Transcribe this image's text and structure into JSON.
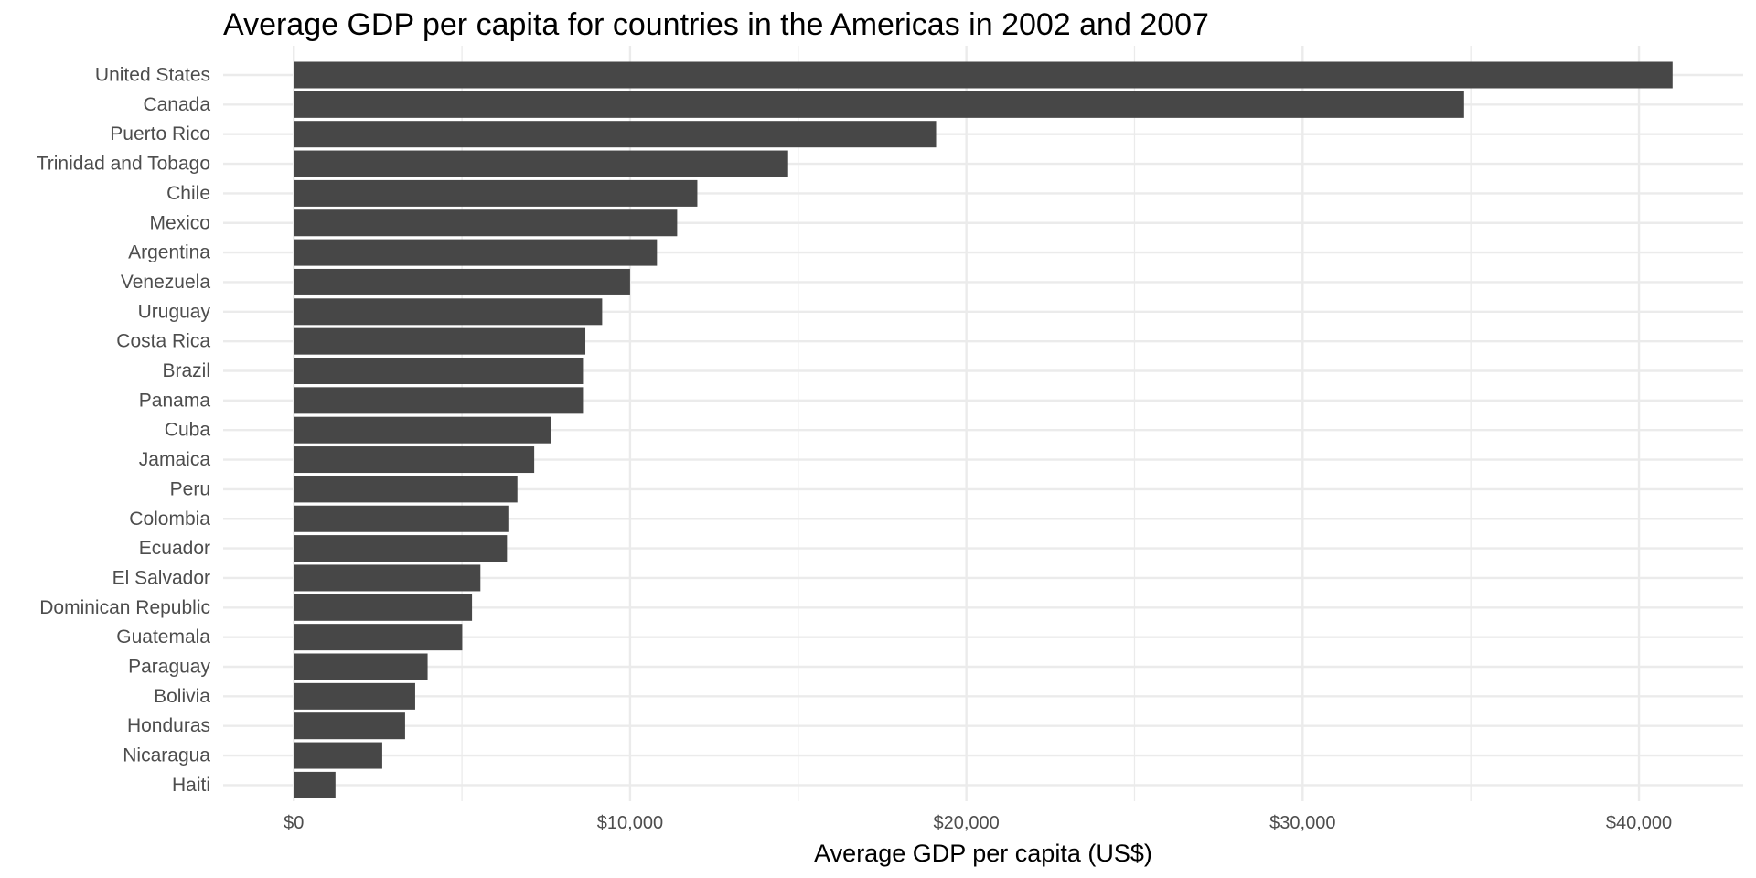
{
  "chart_data": {
    "type": "bar",
    "orientation": "horizontal",
    "title": "Average GDP per capita for countries in the Americas in 2002 and 2007",
    "xlabel": "Average GDP per capita (US$)",
    "ylabel": "",
    "xlim": [
      -2100,
      43100
    ],
    "x_ticks": [
      0,
      10000,
      20000,
      30000,
      40000
    ],
    "x_tick_labels": [
      "$0",
      "$10,000",
      "$20,000",
      "$30,000",
      "$40,000"
    ],
    "grid": true,
    "legend": "none",
    "categories": [
      "United States",
      "Canada",
      "Puerto Rico",
      "Trinidad and Tobago",
      "Chile",
      "Mexico",
      "Argentina",
      "Venezuela",
      "Uruguay",
      "Costa Rica",
      "Brazil",
      "Panama",
      "Cuba",
      "Jamaica",
      "Peru",
      "Colombia",
      "Ecuador",
      "El Salvador",
      "Dominican Republic",
      "Guatemala",
      "Paraguay",
      "Bolivia",
      "Honduras",
      "Nicaragua",
      "Haiti"
    ],
    "values": [
      41000,
      34800,
      19100,
      14700,
      12000,
      11400,
      10800,
      10000,
      9170,
      8670,
      8600,
      8600,
      7650,
      7150,
      6650,
      6380,
      6340,
      5550,
      5300,
      5010,
      3980,
      3610,
      3310,
      2630,
      1240
    ],
    "colors": {
      "bar": "#474747",
      "grid": "#ebebeb",
      "label": "#4d4d4d",
      "title": "#000000"
    }
  }
}
